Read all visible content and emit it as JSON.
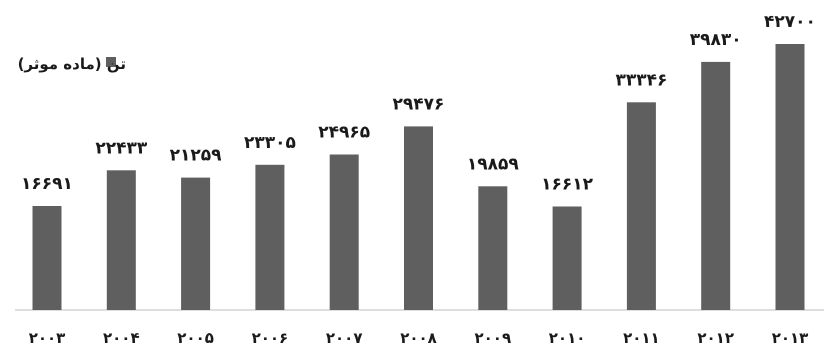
{
  "chart_data": {
    "type": "bar",
    "categories": [
      "2003",
      "2004",
      "2005",
      "2006",
      "2007",
      "2008",
      "2009",
      "2010",
      "2011",
      "2012",
      "2013"
    ],
    "category_labels": [
      "۲۰۰۳",
      "۲۰۰۴",
      "۲۰۰۵",
      "۲۰۰۶",
      "۲۰۰۷",
      "۲۰۰۸",
      "۲۰۰۹",
      "۲۰۱۰",
      "۲۰۱۱",
      "۲۰۱۲",
      "۲۰۱۳"
    ],
    "series": [
      {
        "name": "تن (ماده موثر)",
        "values": [
          16691,
          22433,
          21259,
          23305,
          24965,
          29476,
          19859,
          16612,
          33346,
          39830,
          42700
        ],
        "value_labels": [
          "۱۶۶۹۱",
          "۲۲۴۳۳",
          "۲۱۲۵۹",
          "۲۳۳۰۵",
          "۲۴۹۶۵",
          "۲۹۴۷۶",
          "۱۹۸۵۹",
          "۱۶۶۱۲",
          "۳۳۳۴۶",
          "۳۹۸۳۰",
          "۴۲۷۰۰"
        ]
      }
    ],
    "title": "",
    "xlabel": "",
    "ylabel": "",
    "ylim": [
      0,
      42700
    ],
    "grid": false,
    "legend_position": "top-left",
    "bar_color": "#5f5f5f"
  }
}
